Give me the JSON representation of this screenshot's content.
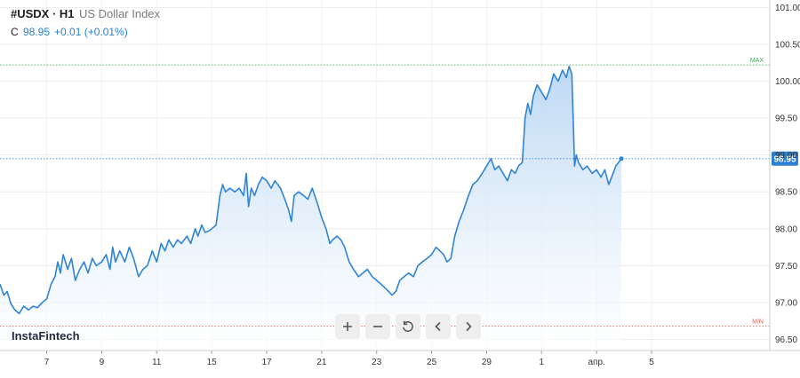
{
  "header": {
    "symbol": "#USDX · H1",
    "description": "US Dollar Index",
    "close_label": "C",
    "close_value": "98.95",
    "change": "+0.01 (+0.01%)"
  },
  "brand": "InstaFintech",
  "toolbar": {
    "zoom_in_icon": "plus",
    "zoom_out_icon": "minus",
    "reset_icon": "rotate-ccw",
    "prev_icon": "chevron-left",
    "next_icon": "chevron-right"
  },
  "colors": {
    "line": "#2f84d4",
    "fill_top": "#b9d6f3",
    "fill_bottom": "#ffffff",
    "current_tag": "#2a80d2",
    "max": "#3aa957",
    "min": "#e0605a"
  },
  "chart_data": {
    "type": "area",
    "ylim": [
      96.35,
      101.1
    ],
    "x_range": [
      0.15,
      14.15
    ],
    "y_ticks": [
      96.5,
      97.0,
      97.5,
      98.0,
      98.5,
      99.0,
      99.5,
      100.0,
      100.5,
      101.0
    ],
    "y_tick_labels": [
      "96.50",
      "97.00",
      "97.50",
      "98.00",
      "98.50",
      "99.00",
      "99.50",
      "100.00",
      "100.50",
      "101.00"
    ],
    "x_ticks": [
      {
        "pos": 1,
        "label": "7"
      },
      {
        "pos": 2,
        "label": "9"
      },
      {
        "pos": 3,
        "label": "11"
      },
      {
        "pos": 4,
        "label": "15"
      },
      {
        "pos": 5,
        "label": "17"
      },
      {
        "pos": 6,
        "label": "21"
      },
      {
        "pos": 7,
        "label": "23"
      },
      {
        "pos": 8,
        "label": "25"
      },
      {
        "pos": 9,
        "label": "29"
      },
      {
        "pos": 10,
        "label": "1"
      },
      {
        "pos": 11,
        "label": "апр."
      },
      {
        "pos": 12,
        "label": "5"
      }
    ],
    "current_value": 98.95,
    "current_label": "98.95",
    "max_value": 100.22,
    "max_label": "MAX",
    "min_value": 96.68,
    "min_label": "MIN",
    "grid": true,
    "points": [
      [
        0.15,
        97.25
      ],
      [
        0.22,
        97.1
      ],
      [
        0.28,
        97.15
      ],
      [
        0.35,
        96.98
      ],
      [
        0.42,
        96.9
      ],
      [
        0.5,
        96.85
      ],
      [
        0.58,
        96.95
      ],
      [
        0.67,
        96.9
      ],
      [
        0.75,
        96.95
      ],
      [
        0.83,
        96.93
      ],
      [
        0.92,
        97.0
      ],
      [
        1.0,
        97.05
      ],
      [
        1.08,
        97.25
      ],
      [
        1.15,
        97.35
      ],
      [
        1.2,
        97.55
      ],
      [
        1.25,
        97.4
      ],
      [
        1.3,
        97.65
      ],
      [
        1.38,
        97.45
      ],
      [
        1.45,
        97.6
      ],
      [
        1.52,
        97.3
      ],
      [
        1.6,
        97.45
      ],
      [
        1.68,
        97.55
      ],
      [
        1.75,
        97.4
      ],
      [
        1.83,
        97.6
      ],
      [
        1.9,
        97.5
      ],
      [
        2.0,
        97.55
      ],
      [
        2.08,
        97.65
      ],
      [
        2.15,
        97.45
      ],
      [
        2.2,
        97.75
      ],
      [
        2.25,
        97.55
      ],
      [
        2.33,
        97.7
      ],
      [
        2.42,
        97.55
      ],
      [
        2.5,
        97.75
      ],
      [
        2.58,
        97.6
      ],
      [
        2.67,
        97.35
      ],
      [
        2.75,
        97.45
      ],
      [
        2.83,
        97.5
      ],
      [
        2.92,
        97.7
      ],
      [
        3.0,
        97.55
      ],
      [
        3.08,
        97.8
      ],
      [
        3.15,
        97.7
      ],
      [
        3.22,
        97.85
      ],
      [
        3.3,
        97.75
      ],
      [
        3.38,
        97.85
      ],
      [
        3.45,
        97.8
      ],
      [
        3.55,
        97.9
      ],
      [
        3.62,
        97.8
      ],
      [
        3.7,
        98.0
      ],
      [
        3.75,
        97.9
      ],
      [
        3.82,
        98.05
      ],
      [
        3.88,
        97.95
      ],
      [
        3.95,
        97.97
      ],
      [
        4.0,
        98.0
      ],
      [
        4.08,
        98.05
      ],
      [
        4.15,
        98.45
      ],
      [
        4.2,
        98.6
      ],
      [
        4.25,
        98.5
      ],
      [
        4.33,
        98.55
      ],
      [
        4.42,
        98.5
      ],
      [
        4.5,
        98.55
      ],
      [
        4.58,
        98.45
      ],
      [
        4.63,
        98.75
      ],
      [
        4.67,
        98.3
      ],
      [
        4.72,
        98.55
      ],
      [
        4.78,
        98.45
      ],
      [
        4.85,
        98.6
      ],
      [
        4.92,
        98.7
      ],
      [
        5.0,
        98.65
      ],
      [
        5.08,
        98.55
      ],
      [
        5.15,
        98.65
      ],
      [
        5.25,
        98.55
      ],
      [
        5.33,
        98.4
      ],
      [
        5.4,
        98.25
      ],
      [
        5.45,
        98.1
      ],
      [
        5.5,
        98.45
      ],
      [
        5.58,
        98.5
      ],
      [
        5.67,
        98.45
      ],
      [
        5.75,
        98.4
      ],
      [
        5.83,
        98.55
      ],
      [
        5.92,
        98.35
      ],
      [
        6.0,
        98.15
      ],
      [
        6.08,
        98.0
      ],
      [
        6.15,
        97.8
      ],
      [
        6.2,
        97.85
      ],
      [
        6.28,
        97.9
      ],
      [
        6.35,
        97.85
      ],
      [
        6.42,
        97.75
      ],
      [
        6.5,
        97.55
      ],
      [
        6.58,
        97.45
      ],
      [
        6.67,
        97.35
      ],
      [
        6.75,
        97.4
      ],
      [
        6.83,
        97.45
      ],
      [
        6.92,
        97.35
      ],
      [
        7.0,
        97.3
      ],
      [
        7.08,
        97.25
      ],
      [
        7.15,
        97.2
      ],
      [
        7.22,
        97.15
      ],
      [
        7.28,
        97.1
      ],
      [
        7.35,
        97.15
      ],
      [
        7.42,
        97.3
      ],
      [
        7.5,
        97.35
      ],
      [
        7.58,
        97.4
      ],
      [
        7.67,
        97.35
      ],
      [
        7.75,
        97.5
      ],
      [
        7.83,
        97.55
      ],
      [
        7.92,
        97.6
      ],
      [
        8.0,
        97.65
      ],
      [
        8.08,
        97.75
      ],
      [
        8.15,
        97.7
      ],
      [
        8.22,
        97.65
      ],
      [
        8.28,
        97.55
      ],
      [
        8.35,
        97.6
      ],
      [
        8.42,
        97.9
      ],
      [
        8.5,
        98.1
      ],
      [
        8.58,
        98.25
      ],
      [
        8.67,
        98.45
      ],
      [
        8.75,
        98.6
      ],
      [
        8.83,
        98.65
      ],
      [
        8.92,
        98.75
      ],
      [
        9.0,
        98.85
      ],
      [
        9.08,
        98.95
      ],
      [
        9.15,
        98.8
      ],
      [
        9.22,
        98.85
      ],
      [
        9.3,
        98.75
      ],
      [
        9.38,
        98.65
      ],
      [
        9.45,
        98.8
      ],
      [
        9.52,
        98.75
      ],
      [
        9.58,
        98.85
      ],
      [
        9.65,
        98.9
      ],
      [
        9.7,
        99.5
      ],
      [
        9.75,
        99.7
      ],
      [
        9.8,
        99.55
      ],
      [
        9.85,
        99.8
      ],
      [
        9.92,
        99.95
      ],
      [
        10.0,
        99.85
      ],
      [
        10.08,
        99.75
      ],
      [
        10.15,
        99.9
      ],
      [
        10.22,
        100.1
      ],
      [
        10.3,
        100.0
      ],
      [
        10.38,
        100.15
      ],
      [
        10.45,
        100.05
      ],
      [
        10.5,
        100.2
      ],
      [
        10.55,
        100.1
      ],
      [
        10.6,
        98.85
      ],
      [
        10.63,
        99.0
      ],
      [
        10.67,
        98.9
      ],
      [
        10.75,
        98.8
      ],
      [
        10.83,
        98.85
      ],
      [
        10.92,
        98.75
      ],
      [
        11.0,
        98.8
      ],
      [
        11.08,
        98.7
      ],
      [
        11.15,
        98.8
      ],
      [
        11.22,
        98.6
      ],
      [
        11.3,
        98.75
      ],
      [
        11.35,
        98.85
      ],
      [
        11.45,
        98.95
      ]
    ]
  }
}
